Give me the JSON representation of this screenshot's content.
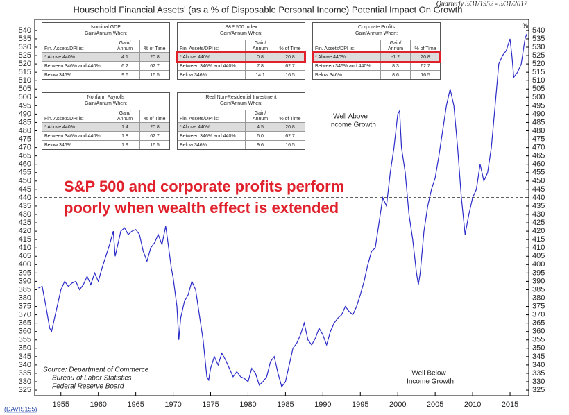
{
  "chart_data": {
    "type": "line",
    "title": "Household Financial Assets' (as a % of Disposable Personal Income) Potential Impact On Growth",
    "subtitle": "Quarterly 3/31/1952 - 3/31/2017",
    "y_unit": "%",
    "xlim": [
      1951.5,
      2017.5
    ],
    "xticks": [
      1955,
      1960,
      1965,
      1970,
      1975,
      1980,
      1985,
      1990,
      1995,
      2000,
      2005,
      2010,
      2015
    ],
    "ylim": [
      321.7,
      546.6
    ],
    "yticks": [
      325,
      330,
      335,
      340,
      345,
      350,
      355,
      360,
      365,
      370,
      375,
      380,
      385,
      390,
      395,
      400,
      405,
      410,
      415,
      420,
      425,
      430,
      435,
      440,
      445,
      450,
      455,
      460,
      465,
      470,
      475,
      480,
      485,
      490,
      495,
      500,
      505,
      510,
      515,
      520,
      525,
      530,
      535,
      540
    ],
    "thresholds": [
      440,
      346
    ],
    "series": [
      {
        "name": "Household Financial Assets / DPI",
        "color": "#2b2bc8",
        "x": [
          1952.0,
          1952.5,
          1953.0,
          1953.5,
          1953.75,
          1954.0,
          1954.5,
          1955.0,
          1955.5,
          1956.0,
          1956.5,
          1957.0,
          1957.5,
          1958.0,
          1958.5,
          1959.0,
          1959.5,
          1960.0,
          1960.5,
          1961.0,
          1961.5,
          1962.0,
          1962.25,
          1962.75,
          1963.0,
          1963.5,
          1964.0,
          1964.5,
          1965.0,
          1965.5,
          1966.0,
          1966.5,
          1967.0,
          1967.5,
          1968.0,
          1968.5,
          1969.0,
          1969.25,
          1969.75,
          1970.0,
          1970.5,
          1970.75,
          1971.0,
          1971.5,
          1972.0,
          1972.5,
          1973.0,
          1973.5,
          1974.0,
          1974.5,
          1974.75,
          1975.0,
          1975.5,
          1976.0,
          1976.5,
          1977.0,
          1977.5,
          1978.0,
          1978.5,
          1979.0,
          1979.5,
          1980.0,
          1980.5,
          1981.0,
          1981.5,
          1982.0,
          1982.5,
          1983.0,
          1983.5,
          1984.0,
          1984.5,
          1985.0,
          1985.5,
          1986.0,
          1986.5,
          1987.0,
          1987.5,
          1988.0,
          1988.5,
          1989.0,
          1989.5,
          1990.0,
          1990.5,
          1991.0,
          1991.5,
          1992.0,
          1992.5,
          1993.0,
          1993.5,
          1994.0,
          1994.5,
          1995.0,
          1995.5,
          1996.0,
          1996.5,
          1997.0,
          1997.5,
          1998.0,
          1998.5,
          1999.0,
          1999.5,
          2000.0,
          2000.25,
          2000.5,
          2001.0,
          2001.5,
          2002.0,
          2002.5,
          2002.75,
          2003.0,
          2003.5,
          2004.0,
          2004.5,
          2005.0,
          2005.5,
          2006.0,
          2006.5,
          2007.0,
          2007.5,
          2008.0,
          2008.5,
          2009.0,
          2009.5,
          2010.0,
          2010.5,
          2011.0,
          2011.5,
          2012.0,
          2012.5,
          2013.0,
          2013.5,
          2014.0,
          2014.5,
          2015.0,
          2015.25,
          2015.5,
          2016.0,
          2016.5,
          2017.0,
          2017.25
        ],
        "values": [
          386,
          387,
          375,
          362,
          360,
          365,
          375,
          385,
          390,
          387,
          389,
          390,
          385,
          388,
          393,
          388,
          395,
          390,
          398,
          405,
          412,
          420,
          405,
          415,
          420,
          422,
          418,
          420,
          421,
          418,
          408,
          402,
          410,
          413,
          418,
          412,
          423,
          415,
          398,
          392,
          375,
          355,
          368,
          378,
          382,
          390,
          385,
          370,
          355,
          333,
          331,
          338,
          345,
          340,
          347,
          343,
          338,
          333,
          336,
          333,
          332,
          330,
          338,
          335,
          328,
          330,
          333,
          342,
          345,
          335,
          327,
          330,
          340,
          350,
          353,
          358,
          365,
          355,
          352,
          356,
          362,
          358,
          352,
          360,
          365,
          368,
          370,
          375,
          372,
          370,
          375,
          382,
          390,
          400,
          408,
          410,
          425,
          440,
          435,
          455,
          470,
          490,
          492,
          470,
          455,
          430,
          415,
          395,
          388,
          395,
          420,
          435,
          445,
          452,
          465,
          480,
          495,
          505,
          495,
          470,
          440,
          418,
          430,
          440,
          445,
          460,
          450,
          455,
          470,
          495,
          520,
          525,
          528,
          535,
          525,
          512,
          515,
          520,
          535,
          538
        ]
      }
    ],
    "annotations": {
      "above": [
        "Well Above",
        "Income Growth"
      ],
      "below": [
        "Well Below",
        "Income Growth"
      ],
      "callout": [
        "S&P 500 and corporate profits perform",
        "poorly when wealth effect is extended"
      ],
      "source": [
        "Source: Department of Commerce",
        "Bureau of Labor Statistics",
        "Federal Reserve Board"
      ],
      "code": "(DAVIS155)"
    }
  },
  "tables": [
    {
      "title": "Nominal GDP",
      "subtitle": "Gain/Annum When:",
      "headers": [
        "Fin. Assets/DPI is:",
        "Gain/ Annum",
        "% of Time"
      ],
      "highlighted": false,
      "rows": [
        [
          "* Above 440%",
          "4.1",
          "20.8"
        ],
        [
          "Between 346% and 440%",
          "6.2",
          "62.7"
        ],
        [
          "Below 346%",
          "9.6",
          "16.5"
        ]
      ]
    },
    {
      "title": "S&P 500 Index",
      "subtitle": "Gain/Annum When:",
      "headers": [
        "Fin. Assets/DPI is:",
        "Gain/ Annum",
        "% of Time"
      ],
      "highlighted": true,
      "rows": [
        [
          "* Above 440%",
          "0.8",
          "20.8"
        ],
        [
          "Between 346% and 440%",
          "7.8",
          "62.7"
        ],
        [
          "Below 346%",
          "14.1",
          "16.5"
        ]
      ]
    },
    {
      "title": "Corporate Profits",
      "subtitle": "Gain/Annum When:",
      "headers": [
        "Fin. Assets/DPI is:",
        "Gain/ Annum",
        "% of Time"
      ],
      "highlighted": true,
      "rows": [
        [
          "* Above 440%",
          "-1.2",
          "20.8"
        ],
        [
          "Between 346% and 440%",
          "8.3",
          "62.7"
        ],
        [
          "Below 346%",
          "8.6",
          "16.5"
        ]
      ]
    },
    {
      "title": "Nonfarm Payrolls",
      "subtitle": "Gain/Annum When:",
      "headers": [
        "Fin. Assets/DPI is:",
        "Gain/ Annum",
        "% of Time"
      ],
      "highlighted": false,
      "rows": [
        [
          "* Above 440%",
          "1.4",
          "20.8"
        ],
        [
          "Between 346% and 440%",
          "1.8",
          "62.7"
        ],
        [
          "Below 346%",
          "1.9",
          "16.5"
        ]
      ]
    },
    {
      "title": "Real Non-Residential Investment",
      "subtitle": "Gain/Annum When:",
      "headers": [
        "Fin. Assets/DPI is:",
        "Gain/ Annum",
        "% of Time"
      ],
      "highlighted": false,
      "rows": [
        [
          "* Above 440%",
          "4.5",
          "20.8"
        ],
        [
          "Between 346% and 440%",
          "6.0",
          "62.7"
        ],
        [
          "Below 346%",
          "9.6",
          "16.5"
        ]
      ]
    }
  ]
}
